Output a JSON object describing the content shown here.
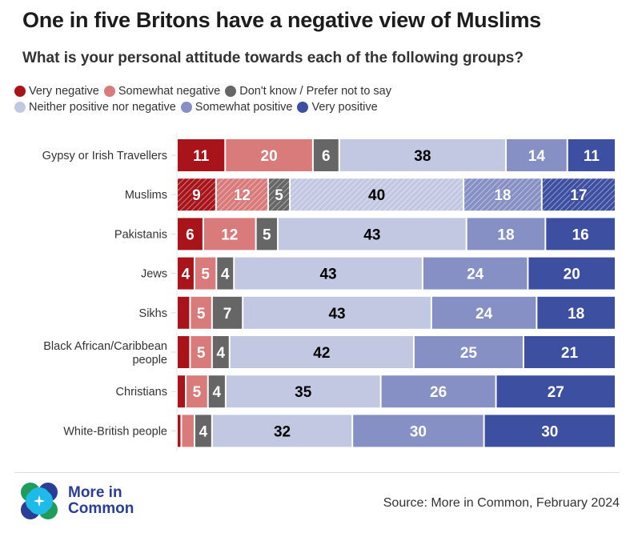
{
  "title": "One in five Britons have a negative view of Muslims",
  "subtitle": "What is your personal attitude towards each of the following groups?",
  "legend": {
    "row1": [
      {
        "label": "Very negative",
        "color": "#a81419"
      },
      {
        "label": "Somewhat negative",
        "color": "#d97b7b"
      },
      {
        "label": "Don't know / Prefer not to say",
        "color": "#666666"
      }
    ],
    "row2": [
      {
        "label": "Neither positive nor negative",
        "color": "#c3c8e2"
      },
      {
        "label": "Somewhat positive",
        "color": "#8690c4"
      },
      {
        "label": "Very positive",
        "color": "#3d4fa0"
      }
    ]
  },
  "chart_data": {
    "type": "bar",
    "orientation": "horizontal-stacked-100",
    "title": "One in five Britons have a negative view of Muslims",
    "subtitle": "What is your personal attitude towards each of the following groups?",
    "categories": [
      "Gypsy or Irish Travellers",
      "Muslims",
      "Pakistanis",
      "Jews",
      "Sikhs",
      "Black African/Caribbean people",
      "Christians",
      "White-British people"
    ],
    "highlighted_category": "Muslims",
    "series": [
      {
        "name": "Very negative",
        "color": "#a81419",
        "values": [
          11,
          9,
          6,
          4,
          3,
          3,
          2,
          1
        ],
        "labels": [
          "11",
          "9",
          "6",
          "4",
          "",
          "",
          "",
          ""
        ]
      },
      {
        "name": "Somewhat negative",
        "color": "#d97b7b",
        "values": [
          20,
          12,
          12,
          5,
          5,
          5,
          5,
          3
        ],
        "labels": [
          "20",
          "12",
          "12",
          "5",
          "5",
          "5",
          "5",
          ""
        ]
      },
      {
        "name": "Don't know / Prefer not to say",
        "color": "#666666",
        "values": [
          6,
          5,
          5,
          4,
          7,
          4,
          4,
          4
        ],
        "labels": [
          "6",
          "5",
          "5",
          "4",
          "7",
          "4",
          "4",
          "4"
        ]
      },
      {
        "name": "Neither positive nor negative",
        "color": "#c3c8e2",
        "values": [
          38,
          40,
          43,
          43,
          43,
          42,
          35,
          32
        ],
        "labels": [
          "38",
          "40",
          "43",
          "43",
          "43",
          "42",
          "35",
          "32"
        ]
      },
      {
        "name": "Somewhat positive",
        "color": "#8690c4",
        "values": [
          14,
          18,
          18,
          24,
          24,
          25,
          26,
          30
        ],
        "labels": [
          "14",
          "18",
          "18",
          "24",
          "24",
          "25",
          "26",
          "30"
        ]
      },
      {
        "name": "Very positive",
        "color": "#3d4fa0",
        "values": [
          11,
          17,
          16,
          20,
          18,
          21,
          27,
          30
        ],
        "labels": [
          "11",
          "17",
          "16",
          "20",
          "18",
          "21",
          "27",
          "30"
        ]
      }
    ],
    "xlabel": "",
    "ylabel": "",
    "legend_position": "top-left",
    "grid": false
  },
  "footer": {
    "source": "Source: More in Common, February 2024",
    "logo_text_line1": "More in",
    "logo_text_line2": "Common"
  }
}
